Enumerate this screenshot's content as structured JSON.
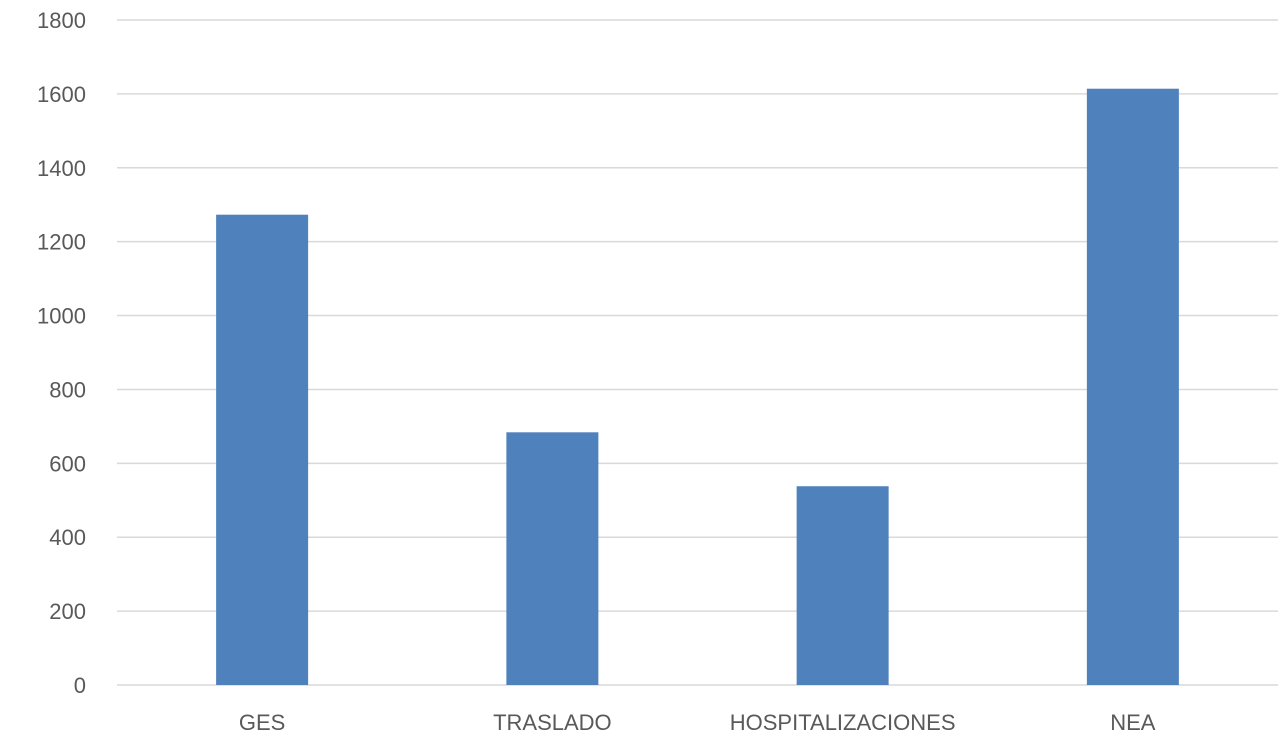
{
  "chart_data": {
    "type": "bar",
    "categories": [
      "GES",
      "TRASLADO",
      "HOSPITALIZACIONES",
      "NEA"
    ],
    "values": [
      1273,
      684,
      538,
      1614
    ],
    "ylim": [
      0,
      1800
    ],
    "yticks": [
      0,
      200,
      400,
      600,
      800,
      1000,
      1200,
      1400,
      1600,
      1800
    ],
    "grid": true,
    "legend": "none",
    "title": "",
    "xlabel": "",
    "ylabel": "",
    "colors": {
      "bar": "#4f81bd",
      "grid": "#d9d9d9",
      "text": "#595959"
    }
  }
}
